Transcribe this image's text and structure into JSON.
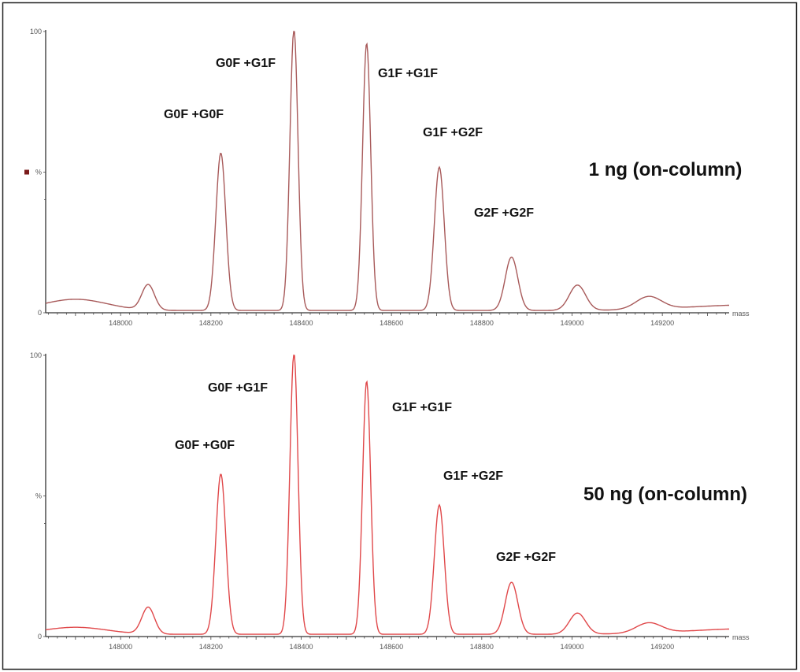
{
  "chart_data": [
    {
      "type": "line",
      "condition_label": "1 ng (on-column)",
      "xlabel": "mass",
      "ylabel": "%",
      "xlim": [
        147834,
        149348
      ],
      "ylim": [
        0,
        100
      ],
      "x_ticks": [
        148000,
        148200,
        148400,
        148600,
        148800,
        149000,
        149200
      ],
      "y_ticks": [
        0,
        100
      ],
      "line_color": "#a85a5a",
      "legend_marker_color": "#7a1a1a",
      "peaks": [
        {
          "mass": 147900,
          "intensity": 4
        },
        {
          "mass": 148061,
          "intensity": 9
        },
        {
          "mass": 148222,
          "intensity": 56,
          "label": "G0F +G0F"
        },
        {
          "mass": 148384,
          "intensity": 100,
          "label": "G0F +G1F"
        },
        {
          "mass": 148545,
          "intensity": 95,
          "label": "G1F +G1F"
        },
        {
          "mass": 148706,
          "intensity": 51,
          "label": "G1F +G2F"
        },
        {
          "mass": 148866,
          "intensity": 19,
          "label": "G2F +G2F"
        },
        {
          "mass": 149012,
          "intensity": 9
        },
        {
          "mass": 149170,
          "intensity": 4.5
        }
      ]
    },
    {
      "type": "line",
      "condition_label": "50 ng (on-column)",
      "xlabel": "mass",
      "ylabel": "%",
      "xlim": [
        147834,
        149348
      ],
      "ylim": [
        0,
        100
      ],
      "x_ticks": [
        148000,
        148200,
        148400,
        148600,
        148800,
        149000,
        149200
      ],
      "y_ticks": [
        0,
        100
      ],
      "line_color": "#e0484a",
      "peaks": [
        {
          "mass": 147900,
          "intensity": 2.5
        },
        {
          "mass": 148061,
          "intensity": 9.5
        },
        {
          "mass": 148222,
          "intensity": 57,
          "label": "G0F +G0F"
        },
        {
          "mass": 148384,
          "intensity": 100,
          "label": "G0F +G1F"
        },
        {
          "mass": 148545,
          "intensity": 90,
          "label": "G1F +G1F"
        },
        {
          "mass": 148706,
          "intensity": 46,
          "label": "G1F +G2F"
        },
        {
          "mass": 148866,
          "intensity": 18.5,
          "label": "G2F +G2F"
        },
        {
          "mass": 149012,
          "intensity": 7.5
        },
        {
          "mass": 149170,
          "intensity": 3.6
        }
      ]
    }
  ]
}
